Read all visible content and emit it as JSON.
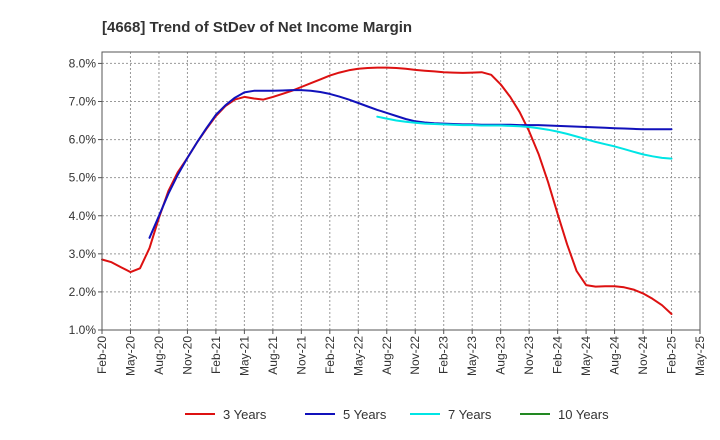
{
  "chart_data": {
    "type": "line",
    "title": "[4668]  Trend of StDev of Net Income Margin",
    "xlabel": "",
    "ylabel": "",
    "x_start": "Feb-20",
    "x_end": "May-25",
    "x_ticks": [
      "Feb-20",
      "May-20",
      "Aug-20",
      "Nov-20",
      "Feb-21",
      "May-21",
      "Aug-21",
      "Nov-21",
      "Feb-22",
      "May-22",
      "Aug-22",
      "Nov-22",
      "Feb-23",
      "May-23",
      "Aug-23",
      "Nov-23",
      "Feb-24",
      "May-24",
      "Aug-24",
      "Nov-24",
      "Feb-25",
      "May-25"
    ],
    "y_ticks": [
      "1.0%",
      "2.0%",
      "3.0%",
      "4.0%",
      "5.0%",
      "6.0%",
      "7.0%",
      "8.0%"
    ],
    "ylim": [
      1.0,
      8.3
    ],
    "grid": true,
    "legend_position": "bottom",
    "series": [
      {
        "name": "3 Years",
        "color": "#dd1111",
        "points": [
          [
            "Feb-20",
            2.85
          ],
          [
            "Mar-20",
            2.78
          ],
          [
            "Apr-20",
            2.65
          ],
          [
            "May-20",
            2.52
          ],
          [
            "Jun-20",
            2.62
          ],
          [
            "Jul-20",
            3.15
          ],
          [
            "Aug-20",
            3.95
          ],
          [
            "Sep-20",
            4.65
          ],
          [
            "Oct-20",
            5.15
          ],
          [
            "Nov-20",
            5.52
          ],
          [
            "Dec-20",
            5.92
          ],
          [
            "Jan-21",
            6.28
          ],
          [
            "Feb-21",
            6.62
          ],
          [
            "Mar-21",
            6.88
          ],
          [
            "Apr-21",
            7.05
          ],
          [
            "May-21",
            7.12
          ],
          [
            "Jun-21",
            7.08
          ],
          [
            "Jul-21",
            7.05
          ],
          [
            "Aug-21",
            7.12
          ],
          [
            "Sep-21",
            7.2
          ],
          [
            "Oct-21",
            7.28
          ],
          [
            "Nov-21",
            7.38
          ],
          [
            "Dec-21",
            7.48
          ],
          [
            "Jan-22",
            7.58
          ],
          [
            "Feb-22",
            7.68
          ],
          [
            "Mar-22",
            7.76
          ],
          [
            "Apr-22",
            7.82
          ],
          [
            "May-22",
            7.86
          ],
          [
            "Jun-22",
            7.88
          ],
          [
            "Jul-22",
            7.89
          ],
          [
            "Aug-22",
            7.89
          ],
          [
            "Sep-22",
            7.88
          ],
          [
            "Oct-22",
            7.86
          ],
          [
            "Nov-22",
            7.83
          ],
          [
            "Dec-22",
            7.81
          ],
          [
            "Jan-23",
            7.79
          ],
          [
            "Feb-23",
            7.77
          ],
          [
            "Mar-23",
            7.76
          ],
          [
            "Apr-23",
            7.75
          ],
          [
            "May-23",
            7.76
          ],
          [
            "Jun-23",
            7.77
          ],
          [
            "Jul-23",
            7.7
          ],
          [
            "Aug-23",
            7.45
          ],
          [
            "Sep-23",
            7.12
          ],
          [
            "Oct-23",
            6.72
          ],
          [
            "Nov-23",
            6.22
          ],
          [
            "Dec-23",
            5.62
          ],
          [
            "Jan-24",
            4.88
          ],
          [
            "Feb-24",
            4.05
          ],
          [
            "Mar-24",
            3.25
          ],
          [
            "Apr-24",
            2.55
          ],
          [
            "May-24",
            2.18
          ],
          [
            "Jun-24",
            2.14
          ],
          [
            "Jul-24",
            2.15
          ],
          [
            "Aug-24",
            2.15
          ],
          [
            "Sep-24",
            2.12
          ],
          [
            "Oct-24",
            2.06
          ],
          [
            "Nov-24",
            1.96
          ],
          [
            "Dec-24",
            1.82
          ],
          [
            "Jan-25",
            1.65
          ],
          [
            "Feb-25",
            1.42
          ]
        ]
      },
      {
        "name": "5 Years",
        "color": "#1111bb",
        "points": [
          [
            "Jul-20",
            3.42
          ],
          [
            "Aug-20",
            4.0
          ],
          [
            "Sep-20",
            4.58
          ],
          [
            "Oct-20",
            5.08
          ],
          [
            "Nov-20",
            5.52
          ],
          [
            "Dec-20",
            5.92
          ],
          [
            "Jan-21",
            6.3
          ],
          [
            "Feb-21",
            6.65
          ],
          [
            "Mar-21",
            6.9
          ],
          [
            "Apr-21",
            7.1
          ],
          [
            "May-21",
            7.24
          ],
          [
            "Jun-21",
            7.28
          ],
          [
            "Jul-21",
            7.28
          ],
          [
            "Aug-21",
            7.28
          ],
          [
            "Sep-21",
            7.29
          ],
          [
            "Oct-21",
            7.3
          ],
          [
            "Nov-21",
            7.3
          ],
          [
            "Dec-21",
            7.28
          ],
          [
            "Jan-22",
            7.25
          ],
          [
            "Feb-22",
            7.2
          ],
          [
            "Mar-22",
            7.13
          ],
          [
            "Apr-22",
            7.05
          ],
          [
            "May-22",
            6.96
          ],
          [
            "Jun-22",
            6.87
          ],
          [
            "Jul-22",
            6.78
          ],
          [
            "Aug-22",
            6.7
          ],
          [
            "Sep-22",
            6.62
          ],
          [
            "Oct-22",
            6.54
          ],
          [
            "Nov-22",
            6.48
          ],
          [
            "Dec-22",
            6.45
          ],
          [
            "Jan-23",
            6.43
          ],
          [
            "Feb-23",
            6.42
          ],
          [
            "Mar-23",
            6.41
          ],
          [
            "Apr-23",
            6.4
          ],
          [
            "May-23",
            6.4
          ],
          [
            "Jun-23",
            6.39
          ],
          [
            "Jul-23",
            6.39
          ],
          [
            "Aug-23",
            6.39
          ],
          [
            "Sep-23",
            6.39
          ],
          [
            "Oct-23",
            6.38
          ],
          [
            "Nov-23",
            6.38
          ],
          [
            "Dec-23",
            6.38
          ],
          [
            "Jan-24",
            6.37
          ],
          [
            "Feb-24",
            6.36
          ],
          [
            "Mar-24",
            6.35
          ],
          [
            "Apr-24",
            6.34
          ],
          [
            "May-24",
            6.33
          ],
          [
            "Jun-24",
            6.32
          ],
          [
            "Jul-24",
            6.31
          ],
          [
            "Aug-24",
            6.3
          ],
          [
            "Sep-24",
            6.29
          ],
          [
            "Oct-24",
            6.28
          ],
          [
            "Nov-24",
            6.27
          ],
          [
            "Dec-24",
            6.27
          ],
          [
            "Jan-25",
            6.27
          ],
          [
            "Feb-25",
            6.27
          ]
        ]
      },
      {
        "name": "7 Years",
        "color": "#00e5e5",
        "points": [
          [
            "Jul-22",
            6.6
          ],
          [
            "Aug-22",
            6.55
          ],
          [
            "Sep-22",
            6.5
          ],
          [
            "Oct-22",
            6.47
          ],
          [
            "Nov-22",
            6.44
          ],
          [
            "Dec-22",
            6.42
          ],
          [
            "Jan-23",
            6.41
          ],
          [
            "Feb-23",
            6.4
          ],
          [
            "Mar-23",
            6.39
          ],
          [
            "Apr-23",
            6.38
          ],
          [
            "May-23",
            6.38
          ],
          [
            "Jun-23",
            6.37
          ],
          [
            "Jul-23",
            6.37
          ],
          [
            "Aug-23",
            6.37
          ],
          [
            "Sep-23",
            6.36
          ],
          [
            "Oct-23",
            6.35
          ],
          [
            "Nov-23",
            6.33
          ],
          [
            "Dec-23",
            6.3
          ],
          [
            "Jan-24",
            6.26
          ],
          [
            "Feb-24",
            6.21
          ],
          [
            "Mar-24",
            6.15
          ],
          [
            "Apr-24",
            6.08
          ],
          [
            "May-24",
            6.01
          ],
          [
            "Jun-24",
            5.94
          ],
          [
            "Jul-24",
            5.88
          ],
          [
            "Aug-24",
            5.82
          ],
          [
            "Sep-24",
            5.75
          ],
          [
            "Oct-24",
            5.68
          ],
          [
            "Nov-24",
            5.61
          ],
          [
            "Dec-24",
            5.56
          ],
          [
            "Jan-25",
            5.52
          ],
          [
            "Feb-25",
            5.5
          ]
        ]
      },
      {
        "name": "10 Years",
        "color": "#228822",
        "points": []
      }
    ]
  }
}
